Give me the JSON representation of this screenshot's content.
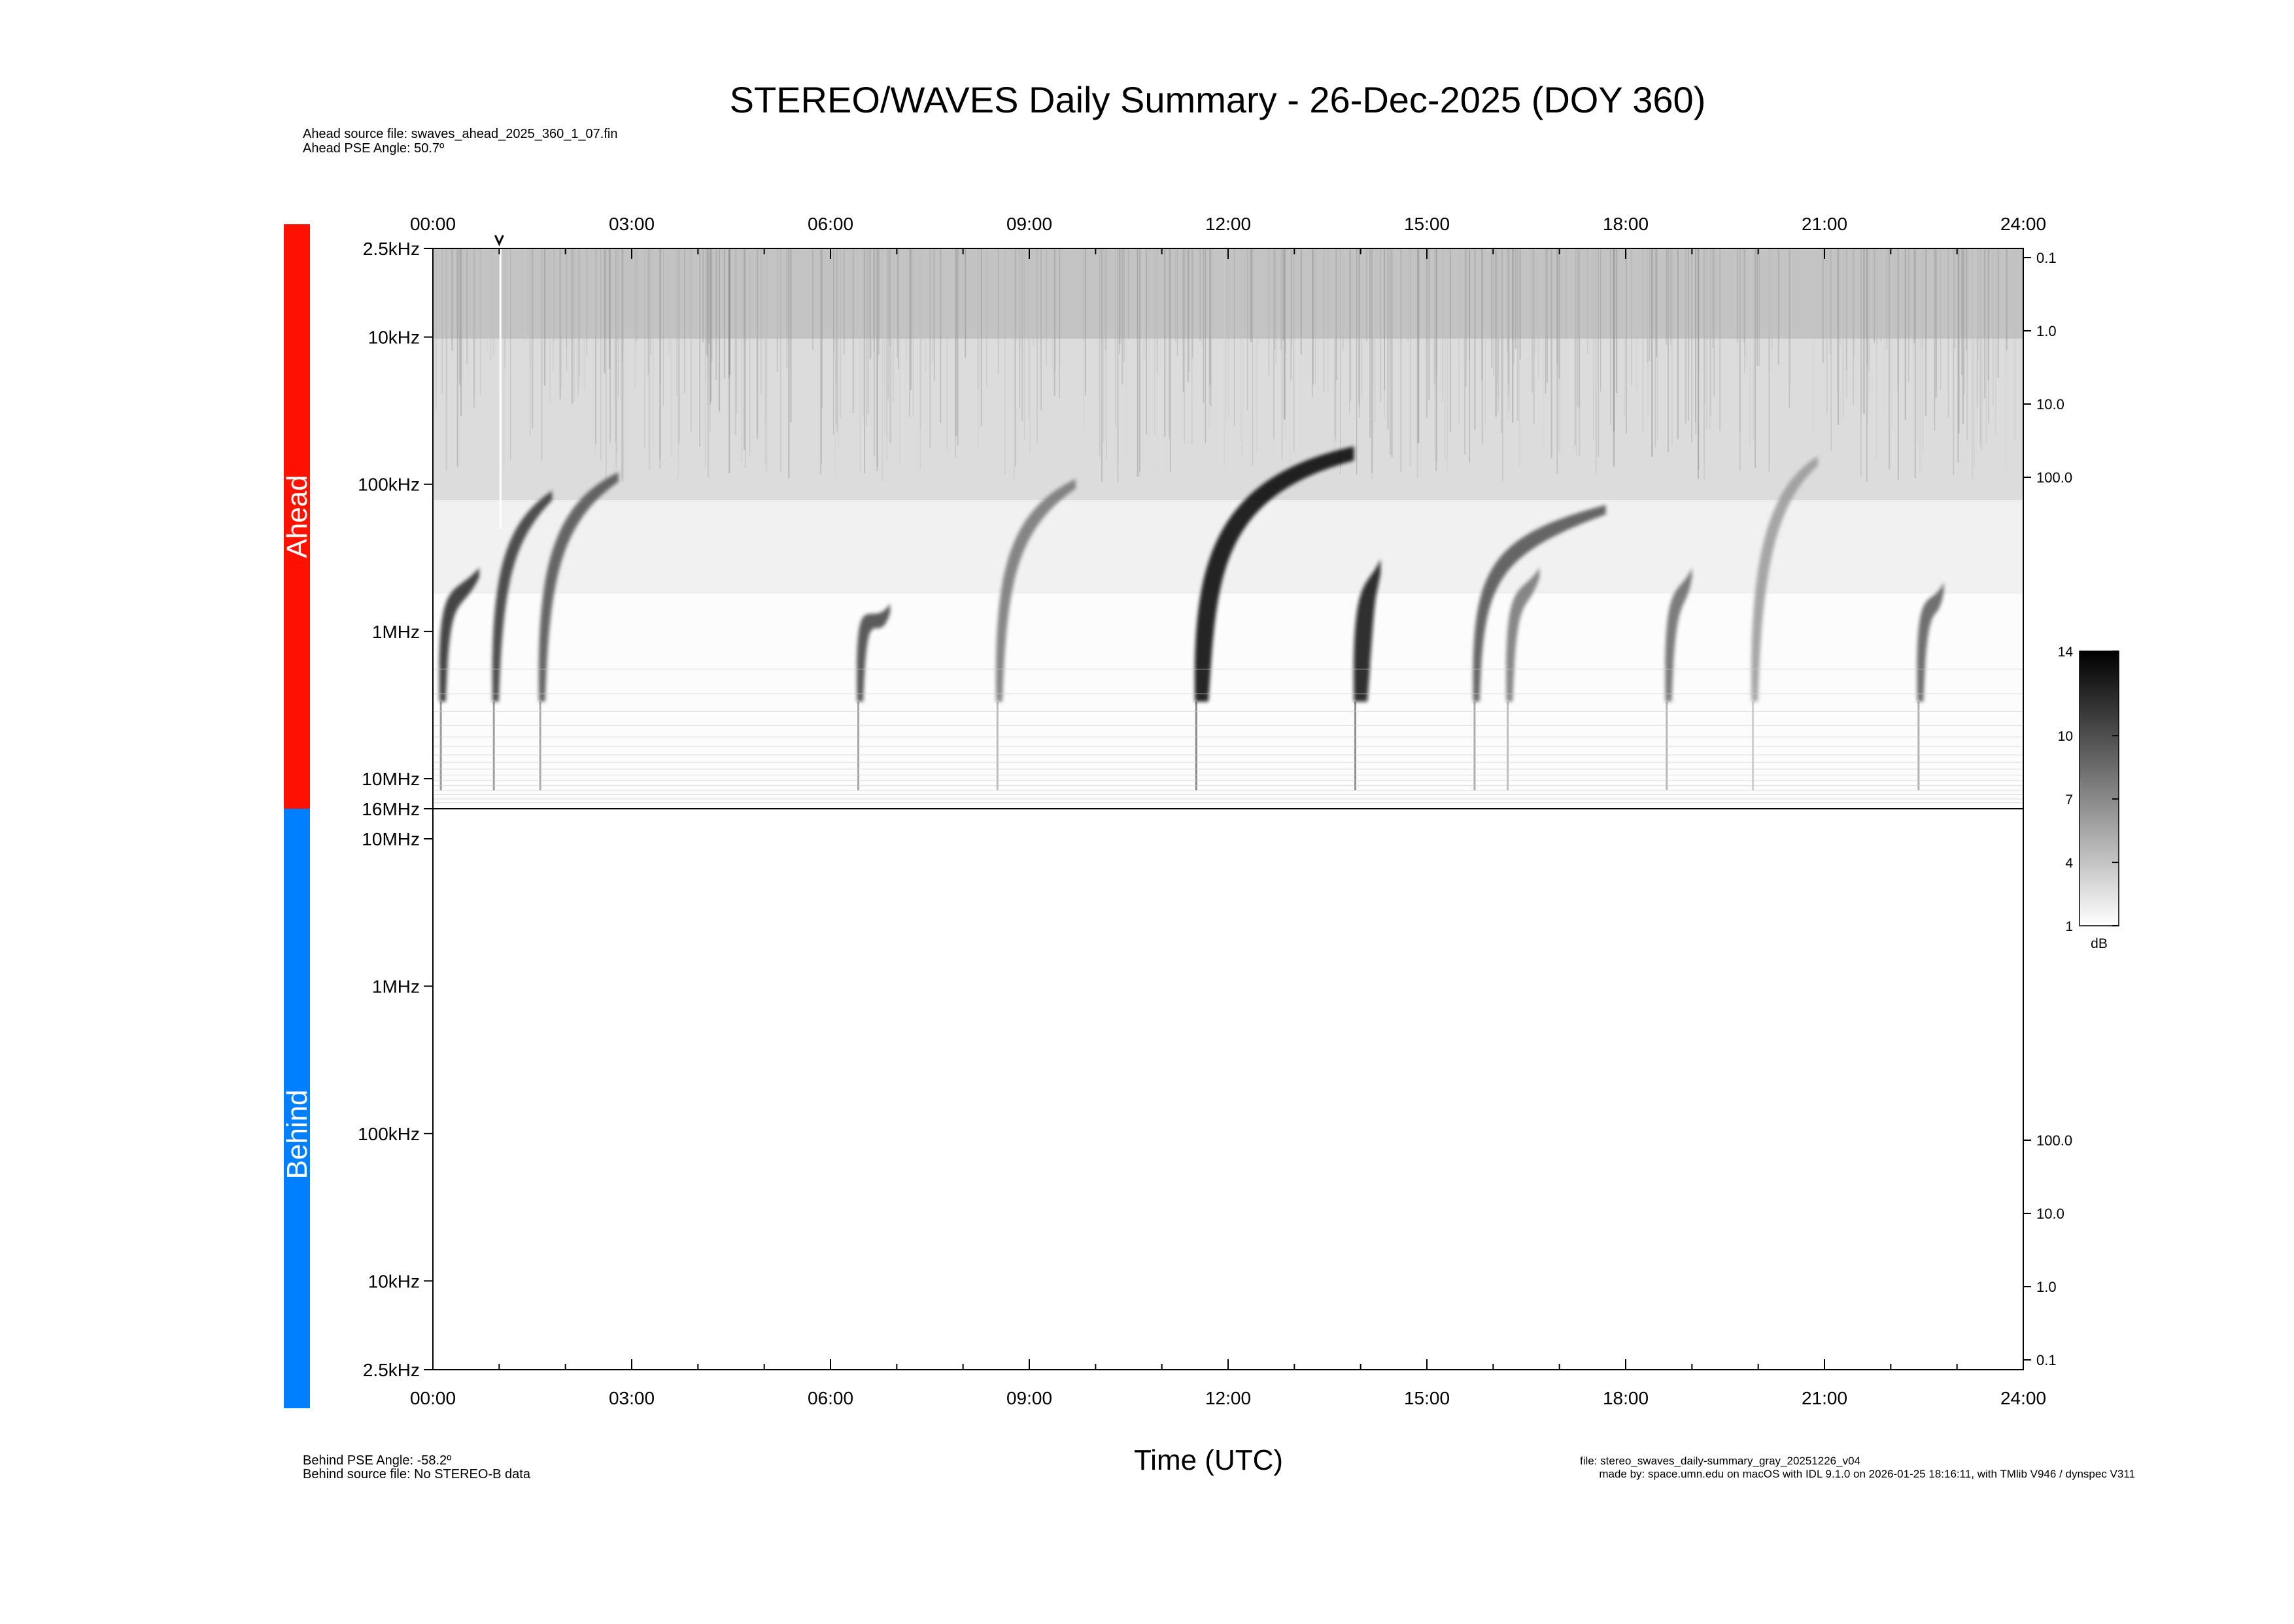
{
  "title": "STEREO/WAVES Daily Summary - 26-Dec-2025 (DOY 360)",
  "header": {
    "ahead_source": "Ahead source file: swaves_ahead_2025_360_1_07.fin",
    "ahead_pse": "Ahead PSE Angle:   50.7º"
  },
  "footer": {
    "behind_pse": "Behind PSE Angle:  -58.2º",
    "behind_source": "Behind source file: No STEREO-B data",
    "xlabel": "Time (UTC)",
    "file_line": "file: stereo_swaves_daily-summary_gray_20251226_v04",
    "made_by": "made by: space.umn.edu on macOS with IDL 9.1.0 on 2026-01-25 18:16:11, with TMlib V946 / dynspec V311"
  },
  "panels": {
    "ahead_label": "Ahead",
    "behind_label": "Behind",
    "ahead_color": "#ff1100",
    "behind_color": "#0080ff"
  },
  "colorbar": {
    "ticks": [
      "14",
      "10",
      "7",
      "4",
      "1"
    ],
    "unit": "dB"
  },
  "chart_data": {
    "type": "heatmap",
    "title": "STEREO/WAVES Daily Summary - 26-Dec-2025 (DOY 360)",
    "xlabel": "Time (UTC)",
    "x_ticks": [
      "00:00",
      "03:00",
      "06:00",
      "09:00",
      "12:00",
      "15:00",
      "18:00",
      "21:00",
      "24:00"
    ],
    "x_range_hours": [
      0,
      24
    ],
    "marker_hour": 1.0,
    "ahead": {
      "y_ticks": [
        {
          "label": "2.5kHz",
          "freq_khz": 2.5
        },
        {
          "label": "10kHz",
          "freq_khz": 10
        },
        {
          "label": "100kHz",
          "freq_khz": 100
        },
        {
          "label": "1MHz",
          "freq_khz": 1000
        },
        {
          "label": "10MHz",
          "freq_khz": 10000
        },
        {
          "label": "16MHz",
          "freq_khz": 16000
        }
      ],
      "right_ticks": [
        "0.1",
        "1.0",
        "10.0",
        "100.0"
      ]
    },
    "behind": {
      "y_ticks": [
        {
          "label": "10MHz",
          "freq_khz": 10000
        },
        {
          "label": "1MHz",
          "freq_khz": 1000
        },
        {
          "label": "100kHz",
          "freq_khz": 100
        },
        {
          "label": "10kHz",
          "freq_khz": 10
        },
        {
          "label": "2.5kHz",
          "freq_khz": 2.5
        }
      ],
      "right_ticks": [
        "100.0",
        "10.0",
        "1.0",
        "0.1"
      ],
      "data": "none"
    },
    "colorbar_range_db": [
      1,
      14
    ],
    "bursts": [
      {
        "t_hours": 0.1,
        "intensity": 0.85,
        "turn_freq_khz": 400,
        "drift_hours": 0.6
      },
      {
        "t_hours": 0.9,
        "intensity": 0.8,
        "turn_freq_khz": 120,
        "drift_hours": 0.9
      },
      {
        "t_hours": 1.6,
        "intensity": 0.7,
        "turn_freq_khz": 90,
        "drift_hours": 1.2
      },
      {
        "t_hours": 6.4,
        "intensity": 0.75,
        "turn_freq_khz": 700,
        "drift_hours": 0.5
      },
      {
        "t_hours": 8.5,
        "intensity": 0.55,
        "turn_freq_khz": 100,
        "drift_hours": 1.2
      },
      {
        "t_hours": 11.5,
        "intensity": 1.0,
        "turn_freq_khz": 60,
        "drift_hours": 2.4
      },
      {
        "t_hours": 13.9,
        "intensity": 0.95,
        "turn_freq_khz": 350,
        "drift_hours": 0.4
      },
      {
        "t_hours": 15.7,
        "intensity": 0.7,
        "turn_freq_khz": 150,
        "drift_hours": 2.0
      },
      {
        "t_hours": 16.2,
        "intensity": 0.55,
        "turn_freq_khz": 400,
        "drift_hours": 0.5
      },
      {
        "t_hours": 18.6,
        "intensity": 0.6,
        "turn_freq_khz": 400,
        "drift_hours": 0.4
      },
      {
        "t_hours": 19.9,
        "intensity": 0.4,
        "turn_freq_khz": 70,
        "drift_hours": 1.0
      },
      {
        "t_hours": 22.4,
        "intensity": 0.65,
        "turn_freq_khz": 500,
        "drift_hours": 0.4
      }
    ]
  }
}
